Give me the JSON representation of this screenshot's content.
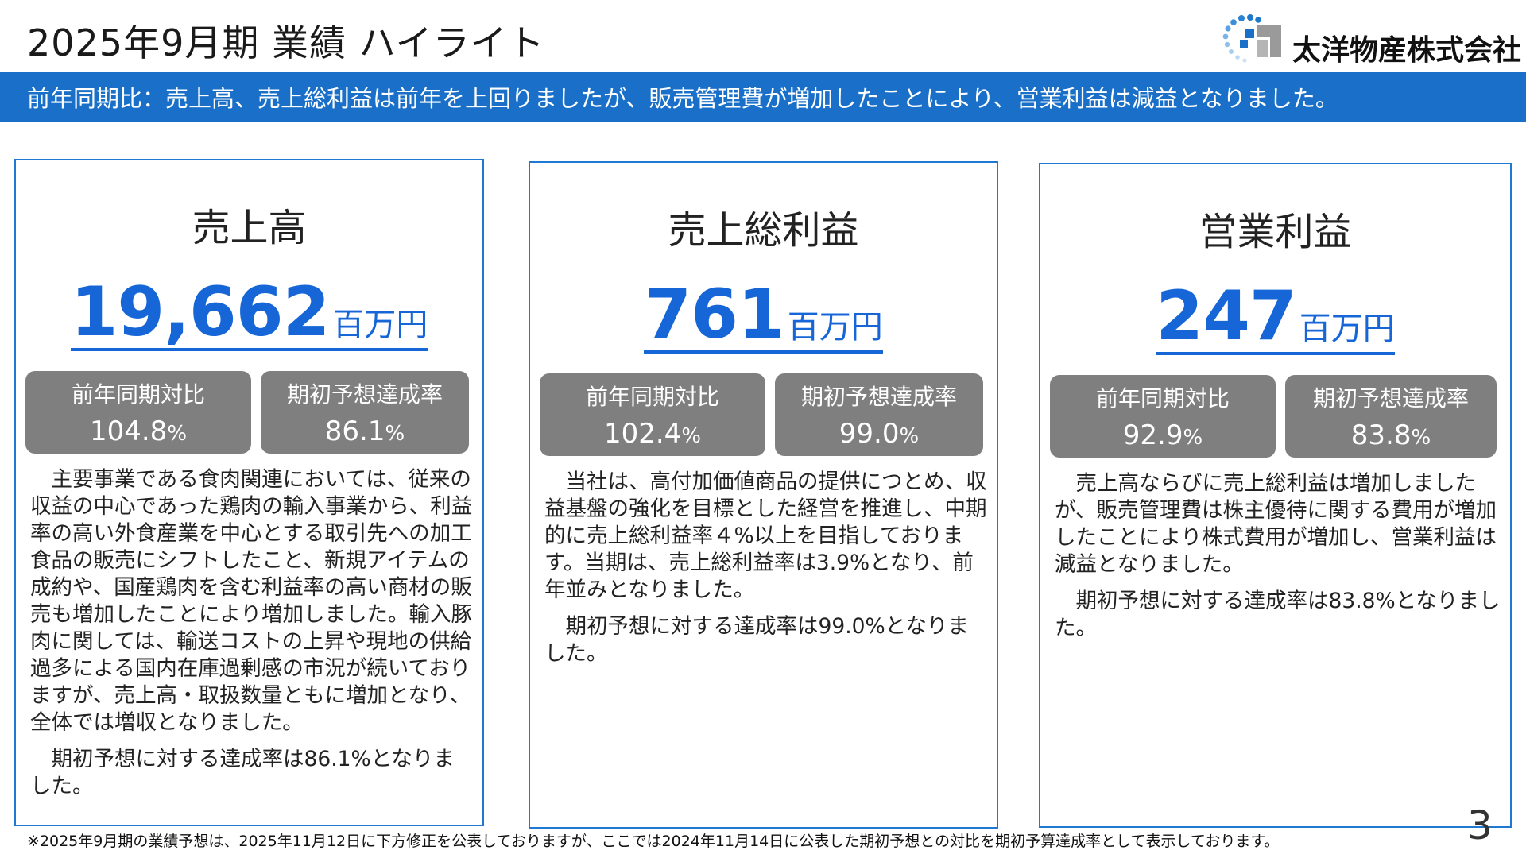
{
  "header": {
    "title": "2025年9月期 業績 ハイライト",
    "logo_text": "太洋物産株式会社",
    "logo_icon": "company-logo-icon"
  },
  "banner": {
    "text": "前年同期比：売上高、売上総利益は前年を上回りましたが、販売管理費が増加したことにより、営業利益は減益となりました。"
  },
  "colors": {
    "accent": "#1a70c8",
    "kpi_blue": "#1666d8",
    "badge_gray": "#7f7f7f"
  },
  "cards": [
    {
      "title": "売上高",
      "value": "19,662",
      "unit": "百万円",
      "yoy_label": "前年同期対比",
      "yoy_value": "104.8",
      "yoy_unit": "%",
      "plan_label": "期初予想達成率",
      "plan_value": "86.1",
      "plan_unit": "%",
      "desc": [
        "主要事業である食肉関連においては、従来の収益の中心であった鶏肉の輸入事業から、利益率の高い外食産業を中心とする取引先への加工食品の販売にシフトしたこと、新規アイテムの成約や、国産鶏肉を含む利益率の高い商材の販売も増加したことにより増加しました。輸入豚肉に関しては、輸送コストの上昇や現地の供給過多による国内在庫過剰感の市況が続いておりますが、売上高・取扱数量ともに増加となり、全体では増収となりました。",
        "期初予想に対する達成率は86.1%となりました。"
      ]
    },
    {
      "title": "売上総利益",
      "value": "761",
      "unit": "百万円",
      "yoy_label": "前年同期対比",
      "yoy_value": "102.4",
      "yoy_unit": "%",
      "plan_label": "期初予想達成率",
      "plan_value": "99.0",
      "plan_unit": "%",
      "desc": [
        "当社は、高付加価値商品の提供につとめ、収益基盤の強化を目標とした経営を推進し、中期的に売上総利益率４%以上を目指しております。当期は、売上総利益率は3.9%となり、前年並みとなりました。",
        "期初予想に対する達成率は99.0%となりました。"
      ]
    },
    {
      "title": "営業利益",
      "value": "247",
      "unit": "百万円",
      "yoy_label": "前年同期対比",
      "yoy_value": "92.9",
      "yoy_unit": "%",
      "plan_label": "期初予想達成率",
      "plan_value": "83.8",
      "plan_unit": "%",
      "desc": [
        "売上高ならびに売上総利益は増加しましたが、販売管理費は株主優待に関する費用が増加したことにより株式費用が増加し、営業利益は減益となりました。",
        "期初予想に対する達成率は83.8%となりました。"
      ]
    }
  ],
  "footnote": "※2025年9月期の業績予想は、2025年11月12日に下方修正を公表しておりますが、ここでは2024年11月14日に公表した期初予想との対比を期初予算達成率として表示しております。",
  "page_number": "3"
}
